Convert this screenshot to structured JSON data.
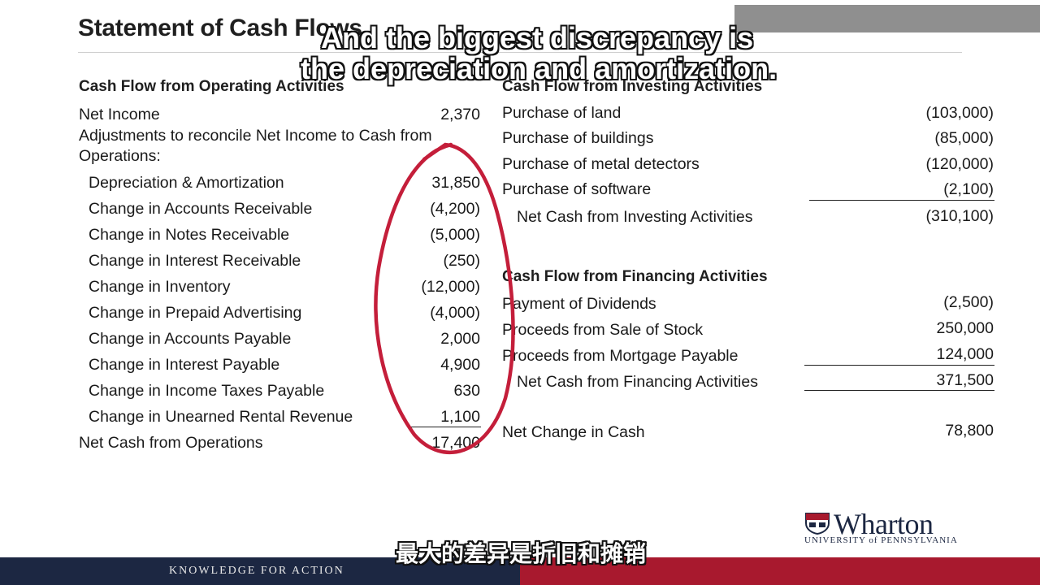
{
  "title": "Statement of Cash Flows",
  "operating": {
    "heading": "Cash Flow from Operating Activities",
    "net_income_label": "Net Income",
    "net_income_value": "2,370",
    "adjust_line1": "Adjustments to reconcile Net Income to Cash from",
    "adjust_line2": "Operations:",
    "items": [
      {
        "label": "Depreciation & Amortization",
        "value": "31,850"
      },
      {
        "label": "Change in Accounts Receivable",
        "value": "(4,200)"
      },
      {
        "label": "Change in Notes Receivable",
        "value": "(5,000)"
      },
      {
        "label": "Change in Interest Receivable",
        "value": "(250)"
      },
      {
        "label": "Change in Inventory",
        "value": "(12,000)"
      },
      {
        "label": "Change in Prepaid Advertising",
        "value": "(4,000)"
      },
      {
        "label": "Change in Accounts Payable",
        "value": "2,000"
      },
      {
        "label": "Change in Interest Payable",
        "value": "4,900"
      },
      {
        "label": "Change in Income Taxes Payable",
        "value": "630"
      },
      {
        "label": "Change in Unearned Rental Revenue",
        "value": "1,100"
      }
    ],
    "total_label": "Net Cash from Operations",
    "total_value": "17,400"
  },
  "investing": {
    "heading": "Cash Flow from Investing Activities",
    "items": [
      {
        "label": "Purchase of land",
        "value": "(103,000)"
      },
      {
        "label": "Purchase of buildings",
        "value": "(85,000)"
      },
      {
        "label": "Purchase of metal detectors",
        "value": "(120,000)"
      },
      {
        "label": "Purchase of software",
        "value": "(2,100)"
      }
    ],
    "total_label": "Net Cash from Investing Activities",
    "total_value": "(310,100)"
  },
  "financing": {
    "heading": "Cash Flow from Financing Activities",
    "items": [
      {
        "label": "Payment of Dividends",
        "value": "(2,500)"
      },
      {
        "label": "Proceeds from Sale of Stock",
        "value": "250,000"
      },
      {
        "label": "Proceeds from Mortgage Payable",
        "value": "124,000"
      }
    ],
    "total_label": "Net Cash from Financing Activities",
    "total_value": "371,500"
  },
  "net_change_label": "Net Change in Cash",
  "net_change_value": "78,800",
  "subtitle_en_line1": "And the biggest discrepancy is",
  "subtitle_en_line2": "the depreciation and amortization.",
  "subtitle_zh": "最大的差异是折旧和摊销",
  "footer_text": "KNOWLEDGE FOR ACTION",
  "logo_name": "Wharton",
  "logo_sub": "UNIVERSITY of PENNSYLVANIA",
  "colors": {
    "navy": "#1c2742",
    "crimson": "#a8192e",
    "annotation": "#c41e3a"
  }
}
